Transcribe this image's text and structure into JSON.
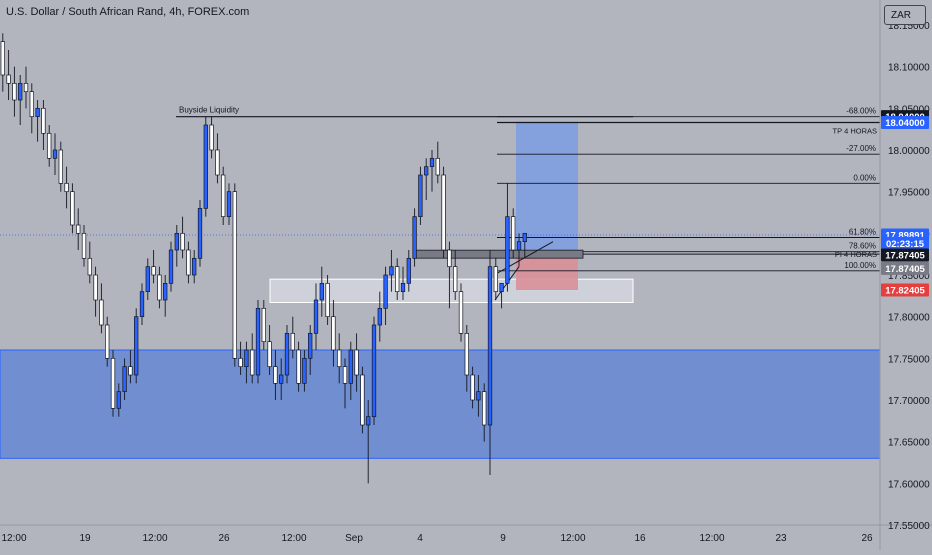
{
  "header": {
    "title": "U.S. Dollar / South African Rand, 4h, FOREX.com",
    "currency": "ZAR"
  },
  "colors": {
    "background": "#b2b5be",
    "candle_up": "#2962ff",
    "candle_down": "#ffffff",
    "candle_outline": "#131722",
    "zone_fill": "#5b82d6",
    "long_target_fill": "#7e9de0",
    "long_stop_fill": "#d98f98",
    "text": "#131722"
  },
  "chart_data": {
    "type": "candlestick",
    "ylim": [
      17.55,
      18.18
    ],
    "y_ticks": [
      "18.15000",
      "18.10000",
      "18.05000",
      "18.00000",
      "17.95000",
      "17.90000",
      "17.85000",
      "17.80000",
      "17.75000",
      "17.70000",
      "17.65000",
      "17.60000",
      "17.55000"
    ],
    "x_labels": [
      "12:00",
      "19",
      "12:00",
      "26",
      "12:00",
      "Sep",
      "4",
      "9",
      "12:00",
      "16",
      "12:00",
      "23",
      "26"
    ],
    "annotations": {
      "buyside_liquidity": {
        "label": "Buyside Liquidity",
        "price": 18.04
      },
      "tp_line": {
        "label": "TP 4 HORAS",
        "price": 18.033
      },
      "pi_line": {
        "label": "PI 4 HORAS",
        "price": 17.875
      },
      "fib_levels": [
        {
          "label": "-68.00%",
          "price": 18.04
        },
        {
          "label": "-27.00%",
          "price": 17.995
        },
        {
          "label": "0.00%",
          "price": 17.96
        },
        {
          "label": "61.80%",
          "price": 17.895
        },
        {
          "label": "78.60%",
          "price": 17.878
        },
        {
          "label": "100.00%",
          "price": 17.855
        }
      ],
      "demand_zone": {
        "top": 17.76,
        "bottom": 17.63
      },
      "order_block": {
        "top": 17.845,
        "bottom": 17.817
      },
      "long_position": {
        "entry": 17.877,
        "target": 18.034,
        "stop": 17.832
      }
    },
    "price_labels": [
      {
        "text": "18.04000",
        "price": 18.04,
        "bg": "#131722",
        "fg": "#ffffff"
      },
      {
        "text": "18.04000",
        "price": 18.033,
        "bg": "#2962ff",
        "fg": "#ffffff"
      },
      {
        "text": "17.89891",
        "price": 17.898,
        "bg": "#2962ff",
        "fg": "#ffffff"
      },
      {
        "text": "02:23:15",
        "price": 17.888,
        "bg": "#2962ff",
        "fg": "#ffffff"
      },
      {
        "text": "17.87405",
        "price": 17.874,
        "bg": "#131722",
        "fg": "#ffffff"
      },
      {
        "text": "17.87405",
        "price": 17.858,
        "bg": "#787b86",
        "fg": "#ffffff"
      },
      {
        "text": "17.82405",
        "price": 17.832,
        "bg": "#e53e3e",
        "fg": "#ffffff"
      }
    ],
    "candles": [
      [
        18.13,
        18.14,
        18.07,
        18.09
      ],
      [
        18.09,
        18.12,
        18.06,
        18.08
      ],
      [
        18.08,
        18.1,
        18.04,
        18.06
      ],
      [
        18.06,
        18.09,
        18.03,
        18.08
      ],
      [
        18.08,
        18.1,
        18.05,
        18.07
      ],
      [
        18.07,
        18.08,
        18.02,
        18.04
      ],
      [
        18.04,
        18.06,
        18.01,
        18.05
      ],
      [
        18.05,
        18.06,
        18.0,
        18.02
      ],
      [
        18.02,
        18.03,
        17.98,
        17.99
      ],
      [
        17.99,
        18.02,
        17.97,
        18.0
      ],
      [
        18.0,
        18.01,
        17.95,
        17.96
      ],
      [
        17.96,
        17.98,
        17.93,
        17.95
      ],
      [
        17.95,
        17.96,
        17.9,
        17.91
      ],
      [
        17.91,
        17.93,
        17.88,
        17.9
      ],
      [
        17.9,
        17.91,
        17.86,
        17.87
      ],
      [
        17.87,
        17.89,
        17.84,
        17.85
      ],
      [
        17.85,
        17.86,
        17.8,
        17.82
      ],
      [
        17.82,
        17.84,
        17.78,
        17.79
      ],
      [
        17.79,
        17.8,
        17.74,
        17.75
      ],
      [
        17.75,
        17.76,
        17.68,
        17.69
      ],
      [
        17.69,
        17.72,
        17.68,
        17.71
      ],
      [
        17.71,
        17.75,
        17.7,
        17.74
      ],
      [
        17.74,
        17.76,
        17.72,
        17.73
      ],
      [
        17.73,
        17.81,
        17.72,
        17.8
      ],
      [
        17.8,
        17.84,
        17.79,
        17.83
      ],
      [
        17.83,
        17.87,
        17.82,
        17.86
      ],
      [
        17.86,
        17.88,
        17.84,
        17.85
      ],
      [
        17.85,
        17.86,
        17.81,
        17.82
      ],
      [
        17.82,
        17.85,
        17.8,
        17.84
      ],
      [
        17.84,
        17.89,
        17.83,
        17.88
      ],
      [
        17.88,
        17.91,
        17.86,
        17.9
      ],
      [
        17.9,
        17.92,
        17.87,
        17.88
      ],
      [
        17.88,
        17.89,
        17.84,
        17.85
      ],
      [
        17.85,
        17.88,
        17.84,
        17.87
      ],
      [
        17.87,
        17.94,
        17.86,
        17.93
      ],
      [
        17.93,
        18.04,
        17.92,
        18.03
      ],
      [
        18.03,
        18.04,
        17.99,
        18.0
      ],
      [
        18.0,
        18.02,
        17.96,
        17.97
      ],
      [
        17.97,
        17.98,
        17.91,
        17.92
      ],
      [
        17.92,
        17.96,
        17.91,
        17.95
      ],
      [
        17.95,
        17.96,
        17.74,
        17.75
      ],
      [
        17.75,
        17.77,
        17.73,
        17.74
      ],
      [
        17.74,
        17.77,
        17.72,
        17.76
      ],
      [
        17.76,
        17.78,
        17.72,
        17.73
      ],
      [
        17.73,
        17.82,
        17.72,
        17.81
      ],
      [
        17.81,
        17.82,
        17.76,
        17.77
      ],
      [
        17.77,
        17.79,
        17.73,
        17.74
      ],
      [
        17.74,
        17.76,
        17.7,
        17.72
      ],
      [
        17.72,
        17.75,
        17.7,
        17.73
      ],
      [
        17.73,
        17.79,
        17.72,
        17.78
      ],
      [
        17.78,
        17.8,
        17.75,
        17.76
      ],
      [
        17.76,
        17.77,
        17.71,
        17.72
      ],
      [
        17.72,
        17.76,
        17.71,
        17.75
      ],
      [
        17.75,
        17.79,
        17.73,
        17.78
      ],
      [
        17.78,
        17.84,
        17.76,
        17.82
      ],
      [
        17.82,
        17.86,
        17.8,
        17.84
      ],
      [
        17.84,
        17.85,
        17.79,
        17.8
      ],
      [
        17.8,
        17.82,
        17.74,
        17.76
      ],
      [
        17.76,
        17.78,
        17.72,
        17.74
      ],
      [
        17.74,
        17.75,
        17.69,
        17.72
      ],
      [
        17.72,
        17.77,
        17.7,
        17.76
      ],
      [
        17.76,
        17.78,
        17.71,
        17.73
      ],
      [
        17.73,
        17.74,
        17.66,
        17.67
      ],
      [
        17.67,
        17.7,
        17.6,
        17.68
      ],
      [
        17.68,
        17.8,
        17.67,
        17.79
      ],
      [
        17.79,
        17.83,
        17.77,
        17.81
      ],
      [
        17.81,
        17.86,
        17.79,
        17.85
      ],
      [
        17.85,
        17.88,
        17.83,
        17.86
      ],
      [
        17.86,
        17.87,
        17.82,
        17.83
      ],
      [
        17.83,
        17.86,
        17.82,
        17.84
      ],
      [
        17.84,
        17.88,
        17.83,
        17.87
      ],
      [
        17.87,
        17.93,
        17.86,
        17.92
      ],
      [
        17.92,
        17.98,
        17.91,
        17.97
      ],
      [
        17.97,
        17.99,
        17.94,
        17.98
      ],
      [
        17.98,
        18.0,
        17.95,
        17.99
      ],
      [
        17.99,
        18.01,
        17.96,
        17.97
      ],
      [
        17.97,
        17.98,
        17.87,
        17.88
      ],
      [
        17.88,
        17.89,
        17.81,
        17.86
      ],
      [
        17.86,
        17.88,
        17.82,
        17.83
      ],
      [
        17.83,
        17.84,
        17.77,
        17.78
      ],
      [
        17.78,
        17.79,
        17.71,
        17.73
      ],
      [
        17.73,
        17.74,
        17.69,
        17.7
      ],
      [
        17.7,
        17.73,
        17.68,
        17.71
      ],
      [
        17.71,
        17.72,
        17.65,
        17.67
      ],
      [
        17.67,
        17.88,
        17.61,
        17.86
      ],
      [
        17.86,
        17.87,
        17.82,
        17.83
      ],
      [
        17.83,
        17.84,
        17.81,
        17.84
      ],
      [
        17.84,
        17.96,
        17.83,
        17.92
      ],
      [
        17.92,
        17.93,
        17.87,
        17.88
      ],
      [
        17.88,
        17.9,
        17.86,
        17.89
      ],
      [
        17.89,
        17.9,
        17.87,
        17.9
      ]
    ]
  }
}
